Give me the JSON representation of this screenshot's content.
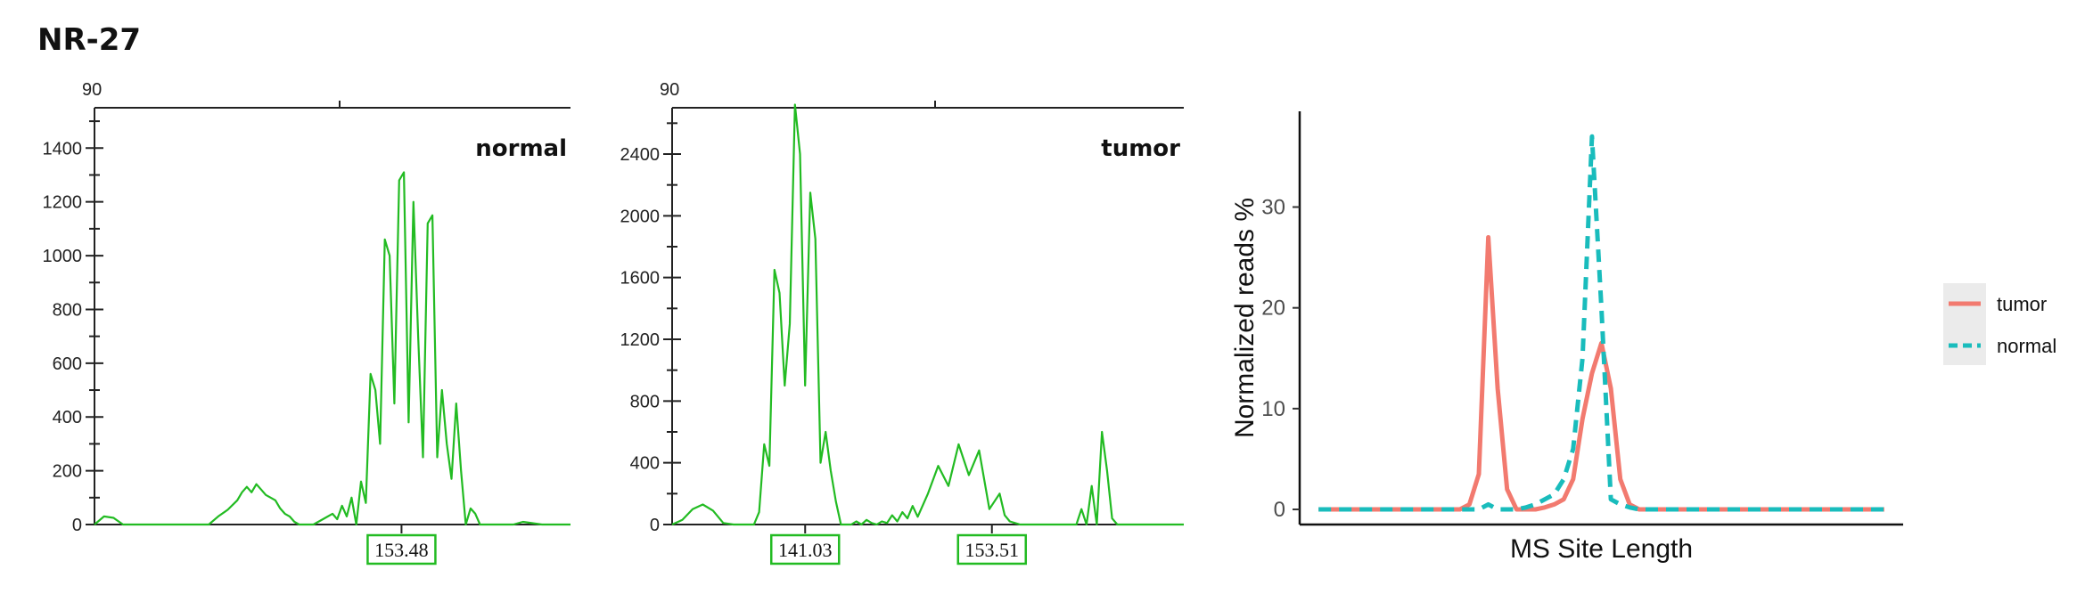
{
  "figure_title": "NR-27",
  "chart_data": [
    {
      "type": "line",
      "panel_label": "normal",
      "top_axis_label": "90",
      "yticks": [
        0,
        200,
        400,
        600,
        800,
        1000,
        1200,
        1400
      ],
      "ylim": [
        0,
        1550
      ],
      "peak_markers": [
        "153.48"
      ],
      "color": "#22bb22",
      "x": [
        0,
        2,
        4,
        6,
        8,
        11,
        16,
        20,
        24,
        26,
        28,
        30,
        31,
        32,
        33,
        34,
        35,
        36,
        37,
        38,
        39,
        40,
        41,
        42,
        43,
        46,
        48,
        50,
        51,
        52,
        53,
        54,
        55,
        56,
        57,
        58,
        59,
        60,
        61,
        62,
        63,
        64,
        65,
        66,
        67,
        68,
        69,
        70,
        71,
        72,
        73,
        74,
        75,
        76,
        77,
        78,
        79,
        80,
        81,
        82,
        83,
        84,
        85,
        86,
        87,
        88,
        90,
        92,
        94,
        95,
        96,
        97,
        98,
        100
      ],
      "y": [
        0,
        30,
        25,
        0,
        0,
        0,
        0,
        0,
        0,
        30,
        55,
        90,
        120,
        140,
        120,
        150,
        130,
        110,
        100,
        90,
        60,
        40,
        30,
        10,
        0,
        0,
        20,
        40,
        20,
        70,
        30,
        100,
        0,
        160,
        80,
        560,
        500,
        300,
        1060,
        1000,
        450,
        1280,
        1310,
        380,
        1200,
        700,
        250,
        1120,
        1150,
        250,
        500,
        300,
        170,
        450,
        200,
        0,
        60,
        40,
        0,
        0,
        0,
        0,
        0,
        0,
        0,
        0,
        10,
        5,
        0,
        0,
        0,
        0,
        0,
        0
      ]
    },
    {
      "type": "line",
      "panel_label": "tumor",
      "top_axis_label": "90",
      "yticks": [
        0,
        400,
        800,
        1200,
        1600,
        2000,
        2400
      ],
      "ylim": [
        0,
        2700
      ],
      "peak_markers": [
        "141.03",
        "153.51"
      ],
      "color": "#22bb22",
      "x": [
        0,
        2,
        4,
        6,
        8,
        10,
        12,
        14,
        16,
        17,
        18,
        19,
        20,
        21,
        22,
        23,
        24,
        25,
        26,
        27,
        28,
        29,
        30,
        31,
        32,
        33,
        34,
        35,
        36,
        37,
        38,
        39,
        40,
        41,
        42,
        43,
        44,
        45,
        46,
        47,
        48,
        50,
        52,
        54,
        56,
        58,
        60,
        62,
        64,
        65,
        66,
        67,
        68,
        69,
        70,
        71,
        72,
        73,
        74,
        75,
        76,
        77,
        78,
        79,
        80,
        81,
        82,
        83,
        84,
        85,
        86,
        87,
        88,
        89,
        90,
        91,
        92,
        93,
        94,
        95,
        96,
        97,
        98,
        99,
        100
      ],
      "y": [
        0,
        30,
        100,
        130,
        90,
        10,
        0,
        0,
        0,
        80,
        520,
        380,
        1650,
        1500,
        900,
        1300,
        2720,
        2400,
        900,
        2150,
        1850,
        400,
        600,
        350,
        150,
        0,
        0,
        0,
        20,
        0,
        30,
        10,
        0,
        20,
        10,
        60,
        20,
        80,
        40,
        120,
        50,
        200,
        380,
        250,
        520,
        320,
        480,
        100,
        200,
        60,
        20,
        10,
        0,
        0,
        0,
        0,
        0,
        0,
        0,
        0,
        0,
        0,
        0,
        0,
        0,
        0,
        0,
        0,
        0,
        0,
        0,
        0,
        0,
        0,
        0,
        0,
        0,
        0,
        0,
        0,
        0,
        0,
        0,
        0,
        0
      ],
      "y_tail_override": [
        [
          80,
          100,
          200
        ],
        [
          82,
          250,
          300
        ],
        [
          84,
          600,
          280
        ],
        [
          85,
          350,
          150
        ],
        [
          86,
          40,
          30
        ],
        [
          87,
          0,
          0
        ]
      ]
    },
    {
      "type": "line",
      "xlabel": "MS Site Length",
      "ylabel": "Normalized reads %",
      "yticks": [
        0,
        10,
        20,
        30
      ],
      "ylim": [
        -1.5,
        39.5
      ],
      "legend_position": "right",
      "series": [
        {
          "name": "tumor",
          "color": "#f27a6f",
          "dash": "solid",
          "x": [
            0,
            1,
            2,
            3,
            4,
            5,
            6,
            7,
            8,
            9,
            10,
            11,
            12,
            13,
            14,
            15,
            16,
            17,
            18,
            19,
            20,
            21,
            22,
            23,
            24,
            25,
            26,
            27,
            28,
            29,
            30,
            31,
            32,
            33,
            34,
            35,
            36,
            37,
            38,
            39,
            40,
            41,
            42,
            43,
            44,
            45,
            46,
            47,
            48,
            49,
            50,
            51,
            52,
            53,
            54,
            55,
            56,
            57,
            58,
            59,
            60
          ],
          "values": [
            0,
            0,
            0,
            0,
            0,
            0,
            0,
            0,
            0,
            0,
            0,
            0,
            0,
            0,
            0,
            0,
            0.5,
            3.5,
            27,
            12,
            2,
            0,
            0,
            0,
            0.2,
            0.5,
            1,
            3,
            9,
            13.5,
            16.5,
            12,
            3,
            0.5,
            0,
            0,
            0,
            0,
            0,
            0,
            0,
            0,
            0,
            0,
            0,
            0,
            0,
            0,
            0,
            0,
            0,
            0,
            0,
            0,
            0,
            0,
            0,
            0,
            0,
            0,
            0
          ]
        },
        {
          "name": "normal",
          "color": "#19bcbc",
          "dash": "dashed",
          "x": [
            0,
            1,
            2,
            3,
            4,
            5,
            6,
            7,
            8,
            9,
            10,
            11,
            12,
            13,
            14,
            15,
            16,
            17,
            18,
            19,
            20,
            21,
            22,
            23,
            24,
            25,
            26,
            27,
            28,
            29,
            30,
            31,
            32,
            33,
            34,
            35,
            36,
            37,
            38,
            39,
            40,
            41,
            42,
            43,
            44,
            45,
            46,
            47,
            48,
            49,
            50,
            51,
            52,
            53,
            54,
            55,
            56,
            57,
            58,
            59,
            60
          ],
          "values": [
            0,
            0,
            0,
            0,
            0,
            0,
            0,
            0,
            0,
            0,
            0,
            0,
            0,
            0,
            0,
            0,
            0,
            0,
            0.5,
            0,
            0,
            0,
            0.2,
            0.5,
            1,
            1.5,
            3,
            6,
            15,
            37,
            20,
            1,
            0.5,
            0.2,
            0,
            0,
            0,
            0,
            0,
            0,
            0,
            0,
            0,
            0,
            0,
            0,
            0,
            0,
            0,
            0,
            0,
            0,
            0,
            0,
            0,
            0,
            0,
            0,
            0,
            0,
            0
          ]
        }
      ]
    }
  ]
}
